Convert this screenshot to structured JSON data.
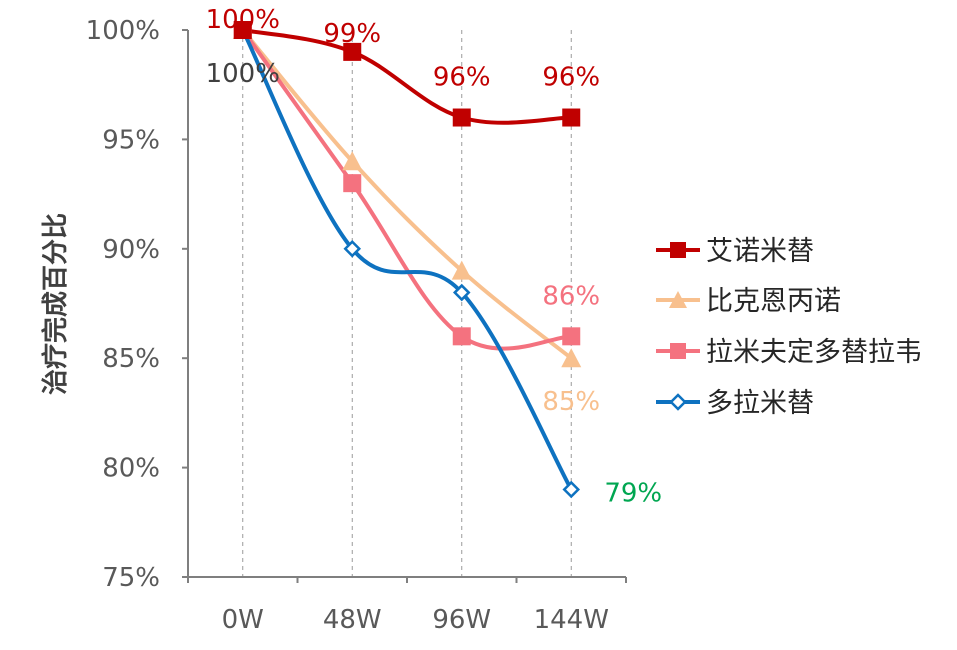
{
  "chart_data": {
    "type": "line",
    "title": "",
    "xlabel": "",
    "ylabel": "治疗完成百分比",
    "categories": [
      "0W",
      "48W",
      "96W",
      "144W"
    ],
    "ylim": [
      75,
      100
    ],
    "yticks": [
      75,
      80,
      85,
      90,
      95,
      100
    ],
    "ytick_labels": [
      "75%",
      "80%",
      "85%",
      "90%",
      "95%",
      "100%"
    ],
    "grid": false,
    "vertical_dashed_guides": true,
    "legend_position": "right",
    "series": [
      {
        "name": "艾诺米替",
        "values": [
          100,
          99,
          96,
          96
        ],
        "color": "#C00000",
        "marker": "square"
      },
      {
        "name": "比克恩丙诺",
        "values": [
          100,
          94,
          89,
          85
        ],
        "color": "#F8C08E",
        "marker": "triangle"
      },
      {
        "name": "拉米夫定多替拉韦",
        "values": [
          100,
          93,
          86,
          86
        ],
        "color": "#F4727F",
        "marker": "square"
      },
      {
        "name": "多拉米替",
        "values": [
          100,
          90,
          88,
          79
        ],
        "color": "#0E72C0",
        "marker": "diamond-open"
      }
    ],
    "annotations": [
      {
        "text": "100%",
        "series": 0,
        "index": 0,
        "color": "#C00000"
      },
      {
        "text": "99%",
        "series": 0,
        "index": 1,
        "color": "#C00000"
      },
      {
        "text": "96%",
        "series": 0,
        "index": 2,
        "color": "#C00000"
      },
      {
        "text": "96%",
        "series": 0,
        "index": 3,
        "color": "#C00000"
      },
      {
        "text": "100%",
        "series": 3,
        "index": 0,
        "color": "#404040"
      },
      {
        "text": "86%",
        "series": 2,
        "index": 3,
        "color": "#F4727F"
      },
      {
        "text": "85%",
        "series": 1,
        "index": 3,
        "color": "#F8C08E"
      },
      {
        "text": "79%",
        "series": 3,
        "index": 3,
        "color": "#00A651"
      }
    ]
  }
}
